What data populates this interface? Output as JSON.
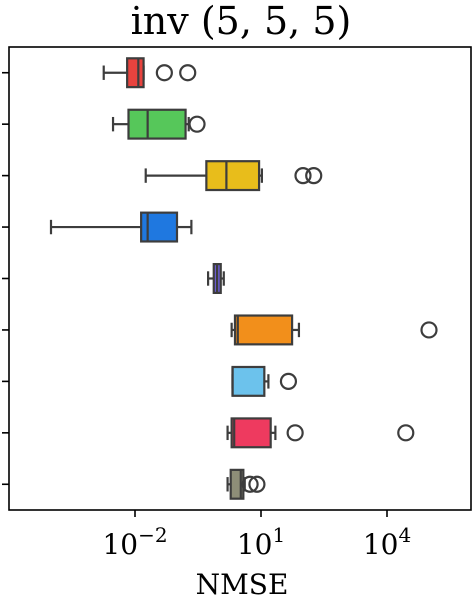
{
  "chart_data": {
    "type": "boxplot",
    "title": "inv (5, 5, 5)",
    "xlabel": "NMSE",
    "ylabel": "",
    "x_scale": "log",
    "xlim": [
      1e-05,
      1000000.0
    ],
    "x_ticks": [
      {
        "value": 0.01,
        "base": "10",
        "exp": "−2"
      },
      {
        "value": 10,
        "base": "10",
        "exp": "1"
      },
      {
        "value": 10000,
        "base": "10",
        "exp": "4"
      }
    ],
    "grid": false,
    "orientation": "horizontal",
    "boxes": [
      {
        "color": "#e8433e",
        "whislo": 0.0018,
        "q1": 0.0065,
        "med": 0.012,
        "q3": 0.016,
        "whishi": 0.016,
        "fliers": [
          0.05,
          0.18
        ]
      },
      {
        "color": "#56c75a",
        "whislo": 0.003,
        "q1": 0.007,
        "med": 0.02,
        "q3": 0.16,
        "whishi": 0.19,
        "fliers": [
          0.3
        ]
      },
      {
        "color": "#e8bd1b",
        "whislo": 0.018,
        "q1": 0.5,
        "med": 1.5,
        "q3": 9.0,
        "whishi": 10.5,
        "fliers": [
          100,
          180
        ]
      },
      {
        "color": "#1f78e0",
        "whislo": 0.0001,
        "q1": 0.014,
        "med": 0.02,
        "q3": 0.1,
        "whishi": 0.22,
        "fliers": []
      },
      {
        "color": "#6b5dd3",
        "whislo": 0.55,
        "q1": 0.75,
        "med": 0.9,
        "q3": 1.1,
        "whishi": 1.3,
        "fliers": []
      },
      {
        "color": "#f28f1b",
        "whislo": 2.0,
        "q1": 2.4,
        "med": 2.8,
        "q3": 55,
        "whishi": 80,
        "fliers": [
          100000
        ]
      },
      {
        "color": "#6cc2ec",
        "whislo": 2.1,
        "q1": 2.1,
        "med": 2.1,
        "q3": 12,
        "whishi": 15,
        "fliers": [
          45
        ]
      },
      {
        "color": "#ee3a5f",
        "whislo": 1.6,
        "q1": 2.0,
        "med": 2.3,
        "q3": 17,
        "whishi": 22,
        "fliers": [
          65,
          28000
        ]
      },
      {
        "color": "#8e8e78",
        "whislo": 1.6,
        "q1": 1.9,
        "med": 3.3,
        "q3": 3.8,
        "whishi": 4.1,
        "fliers": [
          5.5,
          8.0
        ]
      }
    ]
  }
}
